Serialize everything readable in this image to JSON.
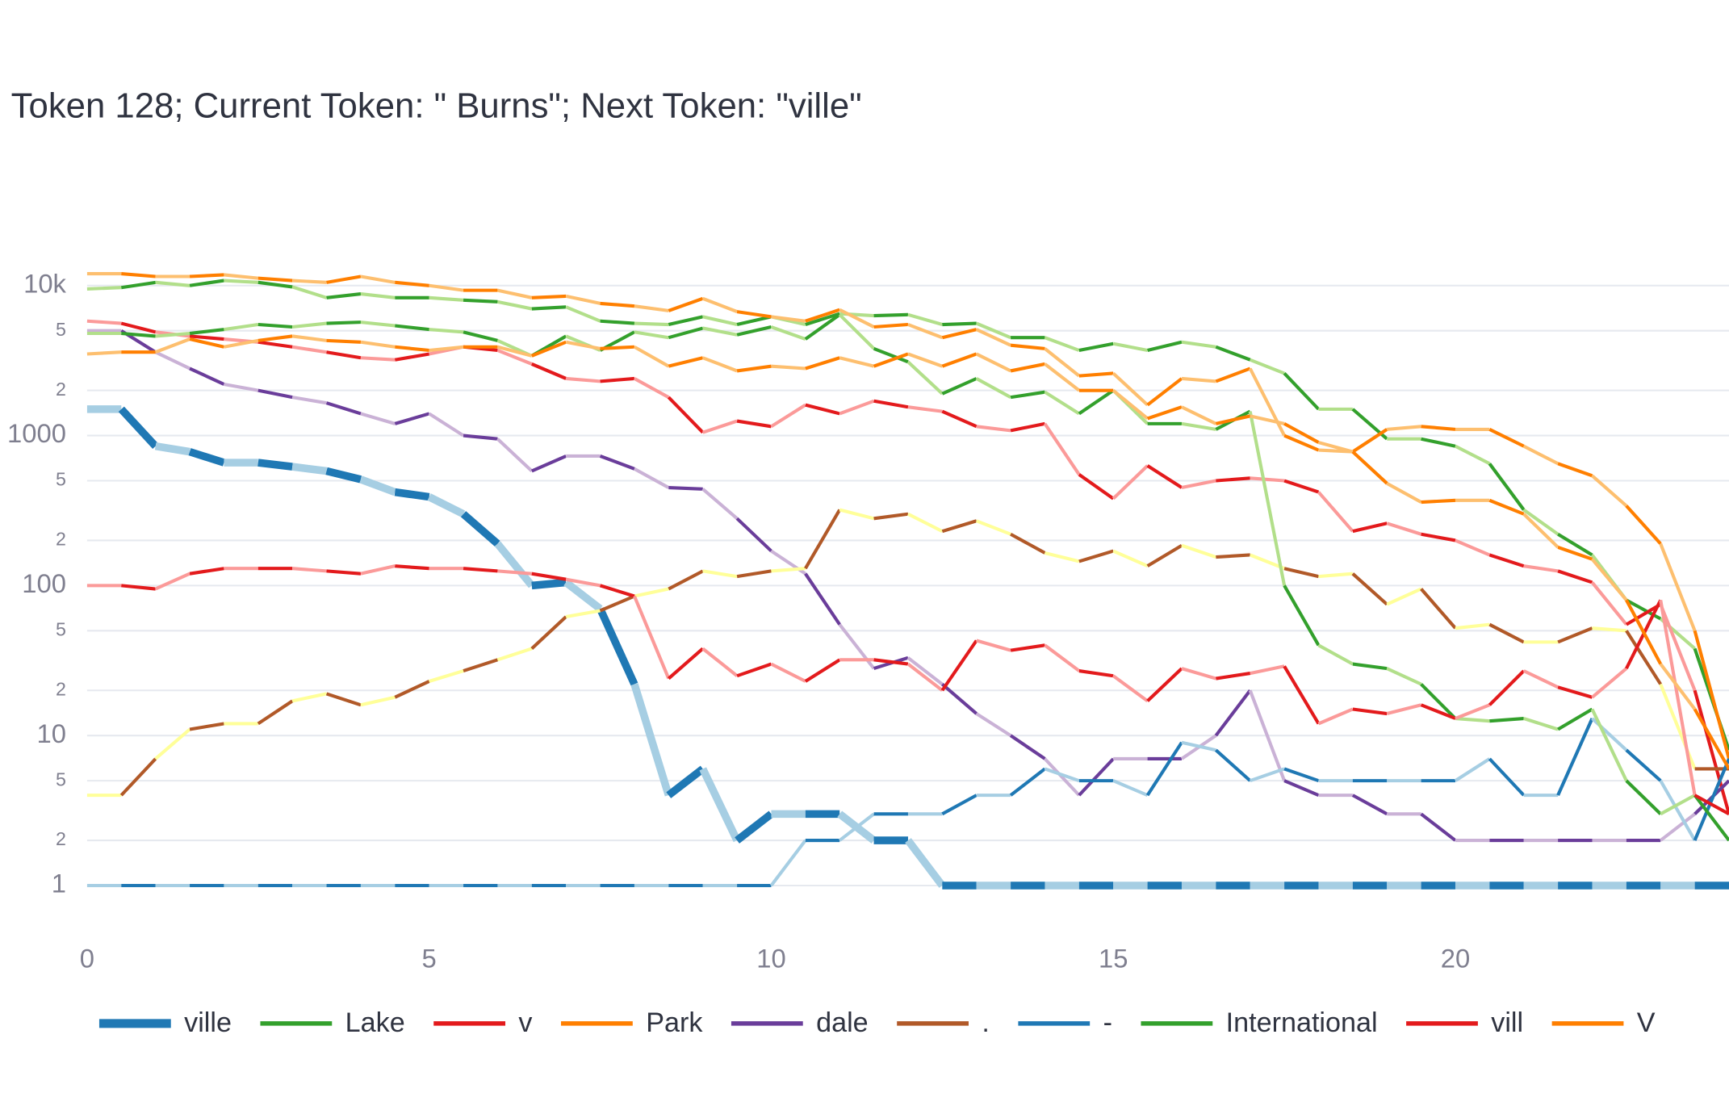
{
  "chart_data": {
    "type": "line",
    "title": "Token 128; Current Token: \" Burns\"; Next Token: \"ville\"",
    "log_y": true,
    "grid": true,
    "xlim": [
      0,
      24
    ],
    "xticks": [
      0,
      5,
      10,
      15,
      20
    ],
    "ylim": [
      0.7,
      14000
    ],
    "yticks": [
      1,
      2,
      5,
      10,
      {
        "value": 20,
        "label": "2"
      },
      {
        "value": 50,
        "label": "5"
      },
      100,
      {
        "value": 200,
        "label": "2"
      },
      {
        "value": 500,
        "label": "5"
      },
      1000,
      {
        "value": 2000,
        "label": "2"
      },
      {
        "value": 5000,
        "label": "5"
      },
      {
        "value": 10000,
        "label": "10k"
      }
    ],
    "x": [
      0,
      0.5,
      1,
      1.5,
      2,
      2.5,
      3,
      3.5,
      4,
      4.5,
      5,
      5.5,
      6,
      6.5,
      7,
      7.5,
      8,
      8.5,
      9,
      9.5,
      10,
      10.5,
      11,
      11.5,
      12,
      12.5,
      13,
      13.5,
      14,
      14.5,
      15,
      15.5,
      16,
      16.5,
      17,
      17.5,
      18,
      18.5,
      19,
      19.5,
      20,
      20.5,
      21,
      21.5,
      22,
      22.5,
      23,
      23.5,
      24
    ],
    "series": [
      {
        "name": "ville",
        "colors": [
          "#1f78b4",
          "#a6cee3"
        ],
        "line_width": 7,
        "values": [
          1500,
          1500,
          850,
          780,
          660,
          660,
          620,
          580,
          510,
          420,
          390,
          300,
          190,
          100,
          105,
          70,
          22,
          4,
          6,
          2,
          3,
          3,
          3,
          2,
          2,
          1,
          1,
          1,
          1,
          1,
          1,
          1,
          1,
          1,
          1,
          1,
          1,
          1,
          1,
          1,
          1,
          1,
          1,
          1,
          1,
          1,
          1,
          1,
          1
        ]
      },
      {
        "name": "Lake",
        "colors": [
          "#33a02c",
          "#b2df8a"
        ],
        "line_width": 3,
        "values": [
          9500,
          9700,
          10500,
          10000,
          10800,
          10500,
          9800,
          8300,
          8800,
          8300,
          8300,
          8000,
          7800,
          7000,
          7200,
          5800,
          5600,
          5500,
          6200,
          5500,
          6200,
          5500,
          6500,
          6300,
          6400,
          5500,
          5600,
          4500,
          4500,
          3700,
          4100,
          3700,
          4200,
          3900,
          3200,
          2600,
          1500,
          1500,
          950,
          950,
          850,
          650,
          320,
          220,
          160,
          80,
          60,
          38,
          8
        ]
      },
      {
        "name": "v",
        "colors": [
          "#e31a1c",
          "#fb9a99"
        ],
        "line_width": 3,
        "values": [
          5800,
          5600,
          4900,
          4600,
          4400,
          4200,
          3900,
          3600,
          3300,
          3200,
          3500,
          3900,
          3700,
          3000,
          2400,
          2300,
          2400,
          1800,
          1050,
          1250,
          1150,
          1600,
          1400,
          1700,
          1550,
          1450,
          1150,
          1080,
          1200,
          550,
          380,
          630,
          450,
          500,
          520,
          500,
          420,
          230,
          260,
          220,
          200,
          160,
          135,
          125,
          105,
          55,
          75,
          20,
          3
        ]
      },
      {
        "name": "Park",
        "colors": [
          "#ff7f00",
          "#fdbf6f"
        ],
        "line_width": 3,
        "values": [
          12000,
          12000,
          11500,
          11500,
          11800,
          11200,
          10800,
          10500,
          11500,
          10500,
          10000,
          9300,
          9300,
          8300,
          8500,
          7600,
          7300,
          6800,
          8200,
          6700,
          6200,
          5800,
          6900,
          5300,
          5500,
          4500,
          5100,
          4000,
          3800,
          2500,
          2600,
          1600,
          2400,
          2300,
          2800,
          1000,
          800,
          780,
          1100,
          1150,
          1100,
          1100,
          850,
          650,
          540,
          340,
          190,
          50,
          7
        ]
      },
      {
        "name": "dale",
        "colors": [
          "#6a3d9a",
          "#cab2d6"
        ],
        "line_width": 3,
        "values": [
          5000,
          5000,
          3600,
          2800,
          2200,
          2000,
          1800,
          1650,
          1400,
          1200,
          1400,
          1000,
          950,
          580,
          730,
          730,
          600,
          450,
          440,
          280,
          170,
          120,
          55,
          28,
          33,
          22,
          14,
          10,
          7,
          4,
          7,
          7,
          7,
          10,
          20,
          5,
          4,
          4,
          3,
          3,
          2,
          2,
          2,
          2,
          2,
          2,
          2,
          3,
          5
        ]
      },
      {
        "name": ".",
        "colors": [
          "#b15928",
          "#ffff99"
        ],
        "line_width": 3,
        "values": [
          4,
          4,
          7,
          11,
          12,
          12,
          17,
          19,
          16,
          18,
          23,
          27,
          32,
          38,
          62,
          68,
          85,
          95,
          125,
          115,
          125,
          130,
          320,
          280,
          300,
          230,
          270,
          220,
          165,
          145,
          170,
          135,
          185,
          155,
          160,
          130,
          115,
          120,
          75,
          95,
          52,
          55,
          42,
          42,
          52,
          50,
          22,
          6,
          6
        ]
      },
      {
        "name": "-",
        "colors": [
          "#1f78b4",
          "#a6cee3"
        ],
        "line_width": 3,
        "values": [
          1,
          1,
          1,
          1,
          1,
          1,
          1,
          1,
          1,
          1,
          1,
          1,
          1,
          1,
          1,
          1,
          1,
          1,
          1,
          1,
          1,
          2,
          2,
          3,
          3,
          3,
          4,
          4,
          6,
          5,
          5,
          4,
          9,
          8,
          5,
          6,
          5,
          5,
          5,
          5,
          5,
          7,
          4,
          4,
          13,
          8,
          5,
          2,
          7
        ]
      },
      {
        "name": "International",
        "colors": [
          "#33a02c",
          "#b2df8a"
        ],
        "line_width": 3,
        "values": [
          4800,
          4800,
          4600,
          4800,
          5100,
          5500,
          5300,
          5600,
          5700,
          5400,
          5100,
          4900,
          4300,
          3400,
          4600,
          3700,
          4900,
          4500,
          5200,
          4700,
          5300,
          4400,
          6400,
          3800,
          3100,
          1900,
          2400,
          1800,
          1950,
          1400,
          2000,
          1200,
          1200,
          1100,
          1450,
          100,
          40,
          30,
          28,
          22,
          13,
          12.5,
          13,
          11,
          15,
          5,
          3,
          4,
          2
        ]
      },
      {
        "name": "vill",
        "colors": [
          "#e31a1c",
          "#fb9a99"
        ],
        "line_width": 3,
        "values": [
          100,
          100,
          95,
          120,
          130,
          130,
          130,
          125,
          120,
          135,
          130,
          130,
          125,
          120,
          110,
          100,
          85,
          24,
          38,
          25,
          30,
          23,
          32,
          32,
          30,
          20,
          43,
          37,
          40,
          27,
          25,
          17,
          28,
          24,
          26,
          29,
          12,
          15,
          14,
          16,
          13,
          16,
          27,
          21,
          18,
          28,
          80,
          4,
          3
        ]
      },
      {
        "name": "V",
        "colors": [
          "#ff7f00",
          "#fdbf6f"
        ],
        "line_width": 3,
        "values": [
          3500,
          3600,
          3600,
          4400,
          3900,
          4300,
          4600,
          4300,
          4200,
          3900,
          3700,
          3900,
          3900,
          3400,
          4200,
          3800,
          3900,
          2900,
          3300,
          2700,
          2900,
          2800,
          3300,
          2900,
          3500,
          2900,
          3500,
          2700,
          3000,
          2000,
          2000,
          1300,
          1550,
          1200,
          1350,
          1200,
          900,
          780,
          480,
          360,
          370,
          370,
          300,
          180,
          150,
          80,
          30,
          15,
          6
        ]
      }
    ]
  }
}
